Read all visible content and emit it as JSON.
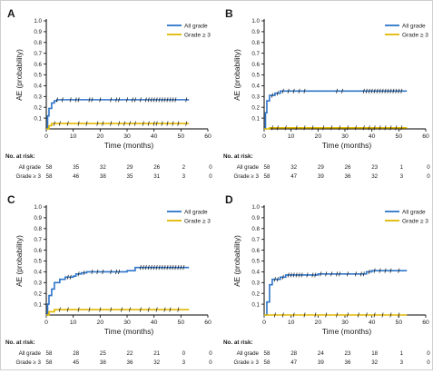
{
  "chart_data": [
    {
      "type": "line",
      "panel_label": "A",
      "xlabel": "Time (months)",
      "ylabel": "AE (probability)",
      "xlim": [
        0,
        60
      ],
      "ylim": [
        0,
        1.0
      ],
      "x_ticks": [
        0,
        10,
        20,
        30,
        40,
        50,
        60
      ],
      "y_ticks": [
        0.1,
        0.2,
        0.3,
        0.4,
        0.5,
        0.6,
        0.7,
        0.8,
        0.9,
        1.0
      ],
      "legend_position": "top-right",
      "series": [
        {
          "name": "All grade",
          "color": "#2e75c9",
          "step_points": [
            [
              0,
              0
            ],
            [
              0.5,
              0.12
            ],
            [
              1,
              0.19
            ],
            [
              2,
              0.24
            ],
            [
              3,
              0.26
            ],
            [
              4,
              0.27
            ],
            [
              53,
              0.27
            ]
          ],
          "censor_x": [
            4,
            6,
            9,
            11,
            12,
            16,
            17,
            20,
            24,
            26,
            27,
            30,
            32,
            33,
            35,
            37,
            38,
            39,
            40,
            41,
            42,
            43,
            44,
            45,
            46,
            47,
            48,
            52
          ]
        },
        {
          "name": "Grade ≥ 3",
          "color": "#e0b800",
          "step_points": [
            [
              0,
              0
            ],
            [
              1,
              0.03
            ],
            [
              2,
              0.05
            ],
            [
              53,
              0.05
            ]
          ],
          "censor_x": [
            3,
            5,
            8,
            12,
            15,
            19,
            21,
            24,
            27,
            29,
            31,
            33,
            36,
            38,
            40,
            41,
            43,
            45,
            47,
            49,
            52
          ]
        }
      ],
      "risk_table": {
        "title": "No. at risk:",
        "times": [
          "0",
          "10",
          "20",
          "30",
          "40",
          "50",
          "60"
        ],
        "rows": [
          {
            "label": "All grade",
            "values": [
              "58",
              "35",
              "32",
              "29",
              "26",
              "2",
              "0"
            ]
          },
          {
            "label": "Grade ≥ 3",
            "values": [
              "58",
              "46",
              "38",
              "35",
              "31",
              "3",
              "0"
            ]
          }
        ]
      }
    },
    {
      "type": "line",
      "panel_label": "B",
      "xlabel": "Time (months)",
      "ylabel": "AE (probability)",
      "xlim": [
        0,
        60
      ],
      "ylim": [
        0,
        1.0
      ],
      "x_ticks": [
        0,
        10,
        20,
        30,
        40,
        50,
        60
      ],
      "y_ticks": [
        0.1,
        0.2,
        0.3,
        0.4,
        0.5,
        0.6,
        0.7,
        0.8,
        0.9,
        1.0
      ],
      "legend_position": "top-right",
      "series": [
        {
          "name": "All grade",
          "color": "#2e75c9",
          "step_points": [
            [
              0,
              0
            ],
            [
              0.5,
              0.15
            ],
            [
              1,
              0.26
            ],
            [
              2,
              0.31
            ],
            [
              4,
              0.33
            ],
            [
              6,
              0.35
            ],
            [
              53,
              0.35
            ]
          ],
          "censor_x": [
            3,
            5,
            7,
            9,
            11,
            13,
            15,
            27,
            29,
            37,
            38,
            39,
            40,
            41,
            42,
            43,
            44,
            45,
            46,
            47,
            48,
            49,
            50,
            51
          ]
        },
        {
          "name": "Grade ≥ 3",
          "color": "#e0b800",
          "step_points": [
            [
              0,
              0
            ],
            [
              2,
              0.01
            ],
            [
              53,
              0.01
            ]
          ],
          "censor_x": [
            3,
            5,
            8,
            12,
            15,
            18,
            22,
            25,
            28,
            31,
            34,
            37,
            39,
            41,
            43,
            45,
            47,
            49,
            51
          ]
        }
      ],
      "risk_table": {
        "title": "No. at risk:",
        "times": [
          "0",
          "10",
          "20",
          "30",
          "40",
          "50",
          "60"
        ],
        "rows": [
          {
            "label": "All grade",
            "values": [
              "58",
              "32",
              "29",
              "26",
              "23",
              "1",
              "0"
            ]
          },
          {
            "label": "Grade ≥ 3",
            "values": [
              "58",
              "47",
              "39",
              "36",
              "32",
              "3",
              "0"
            ]
          }
        ]
      }
    },
    {
      "type": "line",
      "panel_label": "C",
      "xlabel": "Time (months)",
      "ylabel": "AE (probability)",
      "xlim": [
        0,
        60
      ],
      "ylim": [
        0,
        1.0
      ],
      "x_ticks": [
        0,
        10,
        20,
        30,
        40,
        50,
        60
      ],
      "y_ticks": [
        0.1,
        0.2,
        0.3,
        0.4,
        0.5,
        0.6,
        0.7,
        0.8,
        0.9,
        1.0
      ],
      "legend_position": "top-right",
      "series": [
        {
          "name": "All grade",
          "color": "#2e75c9",
          "step_points": [
            [
              0,
              0
            ],
            [
              0.5,
              0.1
            ],
            [
              1,
              0.18
            ],
            [
              2,
              0.24
            ],
            [
              3,
              0.3
            ],
            [
              5,
              0.33
            ],
            [
              7,
              0.35
            ],
            [
              10,
              0.36
            ],
            [
              11,
              0.38
            ],
            [
              13,
              0.39
            ],
            [
              15,
              0.4
            ],
            [
              30,
              0.41
            ],
            [
              33,
              0.44
            ],
            [
              53,
              0.44
            ]
          ],
          "censor_x": [
            8,
            9,
            12,
            14,
            17,
            19,
            21,
            24,
            26,
            27,
            35,
            36,
            37,
            38,
            39,
            40,
            41,
            42,
            43,
            44,
            45,
            46,
            47,
            48,
            49,
            50,
            51
          ]
        },
        {
          "name": "Grade ≥ 3",
          "color": "#e0b800",
          "step_points": [
            [
              0,
              0
            ],
            [
              1,
              0.03
            ],
            [
              3,
              0.05
            ],
            [
              53,
              0.05
            ]
          ],
          "censor_x": [
            5,
            8,
            12,
            16,
            20,
            24,
            28,
            31,
            35,
            38,
            41,
            44,
            46,
            49
          ]
        }
      ],
      "risk_table": {
        "title": "No. at risk:",
        "times": [
          "0",
          "10",
          "20",
          "30",
          "40",
          "50",
          "60"
        ],
        "rows": [
          {
            "label": "All grade",
            "values": [
              "58",
              "28",
              "25",
              "22",
              "21",
              "0",
              "0"
            ]
          },
          {
            "label": "Grade ≥ 3",
            "values": [
              "58",
              "45",
              "38",
              "36",
              "32",
              "3",
              "0"
            ]
          }
        ]
      }
    },
    {
      "type": "line",
      "panel_label": "D",
      "xlabel": "Time (months)",
      "ylabel": "AE (probability)",
      "xlim": [
        0,
        60
      ],
      "ylim": [
        0,
        1.0
      ],
      "x_ticks": [
        0,
        10,
        20,
        30,
        40,
        50,
        60
      ],
      "y_ticks": [
        0.1,
        0.2,
        0.3,
        0.4,
        0.5,
        0.6,
        0.7,
        0.8,
        0.9,
        1.0
      ],
      "legend_position": "top-right",
      "series": [
        {
          "name": "All grade",
          "color": "#2e75c9",
          "step_points": [
            [
              0,
              0
            ],
            [
              1,
              0.12
            ],
            [
              2,
              0.28
            ],
            [
              3,
              0.33
            ],
            [
              6,
              0.35
            ],
            [
              8,
              0.37
            ],
            [
              20,
              0.38
            ],
            [
              38,
              0.4
            ],
            [
              40,
              0.41
            ],
            [
              53,
              0.41
            ]
          ],
          "censor_x": [
            4,
            5,
            7,
            9,
            10,
            11,
            12,
            13,
            14,
            16,
            18,
            19,
            21,
            23,
            25,
            27,
            28,
            31,
            34,
            36,
            37,
            39,
            41,
            43,
            45,
            47,
            50
          ]
        },
        {
          "name": "Grade ≥ 3",
          "color": "#e0b800",
          "step_points": [
            [
              0,
              0
            ],
            [
              53,
              0
            ]
          ],
          "censor_x": [
            4,
            7,
            11,
            15,
            19,
            23,
            27,
            31,
            35,
            38,
            41,
            44,
            47,
            50
          ]
        }
      ],
      "risk_table": {
        "title": "No. at risk:",
        "times": [
          "0",
          "10",
          "20",
          "30",
          "40",
          "50",
          "60"
        ],
        "rows": [
          {
            "label": "All grade",
            "values": [
              "58",
              "28",
              "24",
              "23",
              "18",
              "1",
              "0"
            ]
          },
          {
            "label": "Grade ≥ 3",
            "values": [
              "58",
              "47",
              "39",
              "36",
              "32",
              "3",
              "0"
            ]
          }
        ]
      }
    }
  ]
}
